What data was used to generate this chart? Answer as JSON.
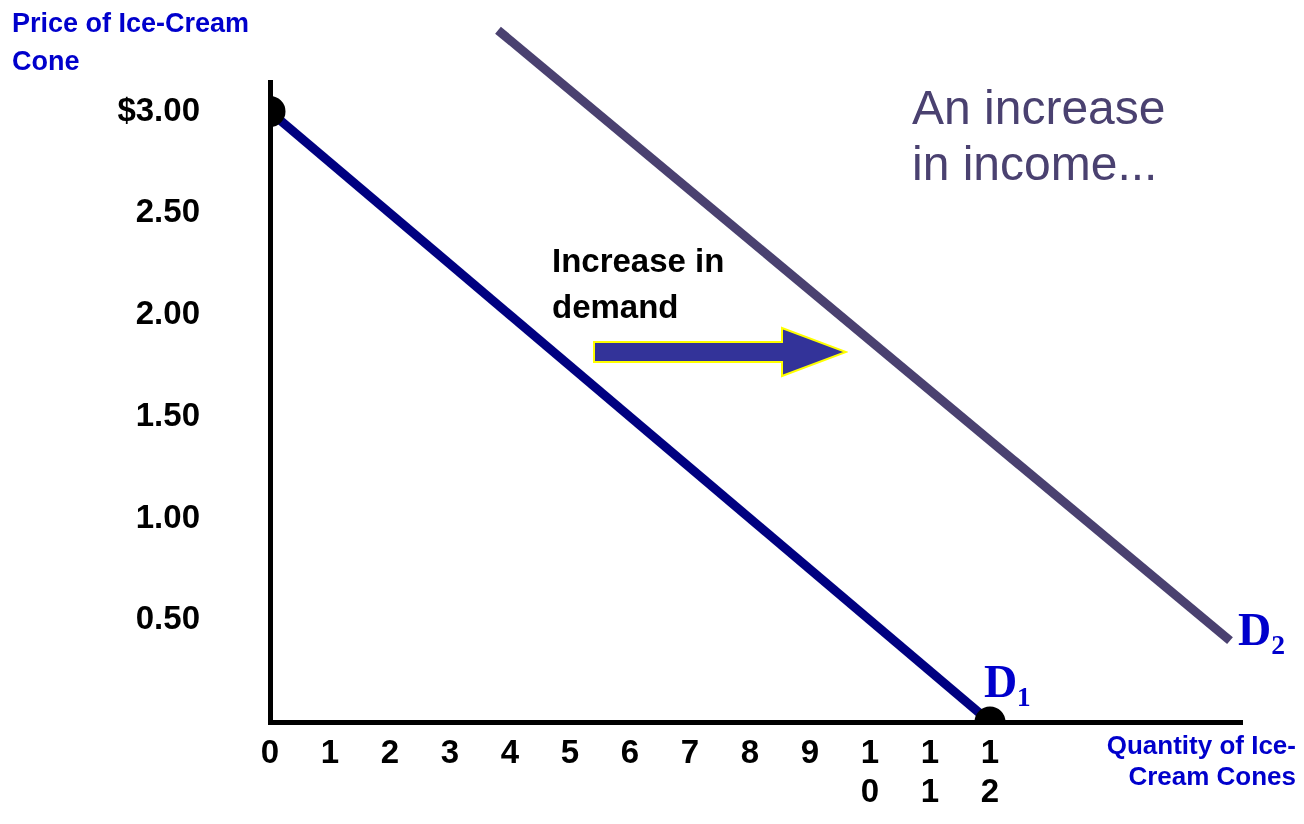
{
  "chart_data": {
    "type": "line",
    "ylabel": "Price of Ice-Cream Cone",
    "xlabel": "Quantity of Ice-Cream Cones",
    "xlim": [
      0,
      16.2
    ],
    "ylim": [
      0,
      3.45
    ],
    "xticks": [
      0,
      1,
      2,
      3,
      4,
      5,
      6,
      7,
      8,
      9,
      10,
      11,
      12
    ],
    "yticks": [
      {
        "value": 0,
        "label": null
      },
      {
        "value": 0.5,
        "label": "0.50"
      },
      {
        "value": 1,
        "label": "1.00"
      },
      {
        "value": 1.5,
        "label": "1.50"
      },
      {
        "value": 2,
        "label": "2.00"
      },
      {
        "value": 2.5,
        "label": "2.50"
      },
      {
        "value": 3,
        "label": "$3.00"
      }
    ],
    "grid": false,
    "legend": false,
    "series": [
      {
        "name": "D₁",
        "color": "#000080",
        "x": [
          0,
          12
        ],
        "values": [
          3,
          0
        ],
        "marker": "circle"
      },
      {
        "name": "D₂",
        "color": "#4a4170",
        "x": [
          3.8,
          16
        ],
        "values": [
          3.4,
          0.4
        ],
        "marker": "none"
      }
    ],
    "annotations": [
      "An increase in income...",
      "Increase in demand"
    ]
  }
}
